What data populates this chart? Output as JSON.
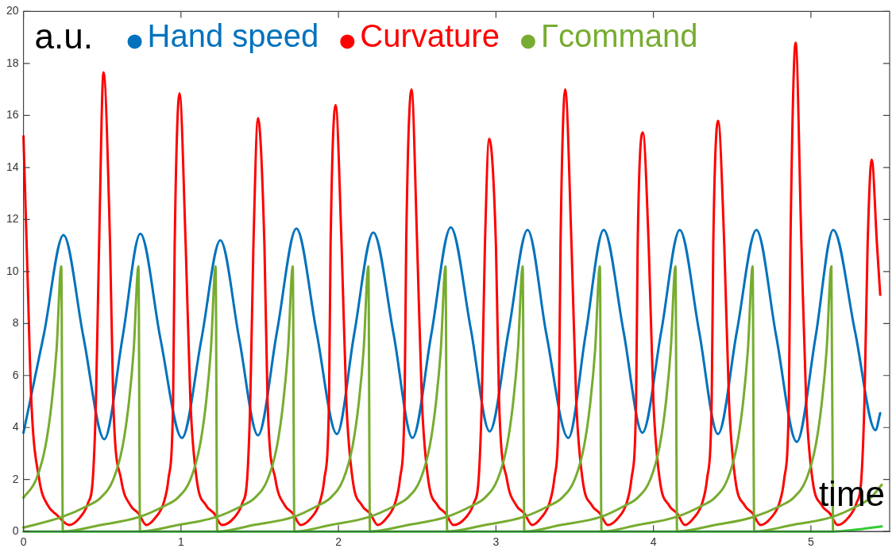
{
  "chart_data": {
    "type": "line",
    "xlabel": "time",
    "ylabel": "a.u.",
    "xlim": [
      0,
      5.5
    ],
    "xticks": [
      0,
      1,
      2,
      3,
      4,
      5
    ],
    "ylim": [
      0,
      20
    ],
    "yticks": [
      0,
      2,
      4,
      6,
      8,
      10,
      12,
      14,
      16,
      18,
      20
    ],
    "grid": false,
    "legend": "top",
    "marker": "none",
    "line_style": "solid",
    "series": [
      {
        "name": "Hand speed",
        "color": "#0072bd",
        "x": [
          0,
          0.13,
          0.254,
          0.38,
          0.513,
          0.63,
          0.742,
          0.87,
          1.006,
          1.13,
          1.25,
          1.37,
          1.489,
          1.61,
          1.733,
          1.86,
          1.99,
          2.1,
          2.221,
          2.35,
          2.47,
          2.59,
          2.713,
          2.84,
          2.96,
          3.08,
          3.201,
          3.32,
          3.46,
          3.57,
          3.684,
          3.81,
          3.93,
          4.05,
          4.167,
          4.29,
          4.41,
          4.53,
          4.654,
          4.78,
          4.91,
          5.03,
          5.142,
          5.28,
          5.41,
          5.44
        ],
        "values": [
          3.8,
          7.6,
          11.4,
          7.5,
          3.55,
          7.5,
          11.45,
          7.4,
          3.6,
          7.4,
          11.2,
          7.4,
          3.7,
          7.7,
          11.65,
          7.7,
          3.75,
          7.6,
          11.5,
          7.6,
          3.6,
          7.6,
          11.7,
          7.8,
          3.85,
          7.7,
          11.6,
          7.6,
          3.6,
          7.6,
          11.6,
          7.7,
          3.8,
          7.7,
          11.6,
          7.7,
          3.75,
          7.7,
          11.6,
          7.5,
          3.45,
          7.5,
          11.6,
          7.7,
          3.9,
          4.55
        ]
      },
      {
        "name": "Curvature",
        "color": "#ff0000",
        "x": [
          0,
          0.025,
          0.05,
          0.1,
          0.155,
          0.21,
          0.29,
          0.36,
          0.41,
          0.44,
          0.46,
          0.48,
          0.508,
          0.55,
          0.57,
          0.62,
          0.68,
          0.73,
          0.78,
          0.84,
          0.89,
          0.92,
          0.95,
          0.96,
          0.991,
          1.03,
          1.06,
          1.1,
          1.16,
          1.21,
          1.26,
          1.34,
          1.39,
          1.42,
          1.44,
          1.46,
          1.489,
          1.53,
          1.55,
          1.6,
          1.66,
          1.71,
          1.76,
          1.83,
          1.88,
          1.91,
          1.94,
          1.95,
          1.982,
          2.02,
          2.05,
          2.09,
          2.15,
          2.2,
          2.25,
          2.31,
          2.36,
          2.39,
          2.42,
          2.43,
          2.464,
          2.5,
          2.53,
          2.57,
          2.63,
          2.68,
          2.73,
          2.81,
          2.86,
          2.89,
          2.91,
          2.93,
          2.957,
          3,
          3.02,
          3.07,
          3.13,
          3.18,
          3.23,
          3.29,
          3.34,
          3.37,
          3.4,
          3.41,
          3.44,
          3.48,
          3.51,
          3.55,
          3.61,
          3.66,
          3.71,
          3.78,
          3.83,
          3.86,
          3.89,
          3.9,
          3.933,
          3.97,
          4,
          4.04,
          4.1,
          4.15,
          4.2,
          4.26,
          4.31,
          4.34,
          4.37,
          4.38,
          4.411,
          4.45,
          4.48,
          4.52,
          4.58,
          4.63,
          4.68,
          4.75,
          4.8,
          4.83,
          4.86,
          4.87,
          4.903,
          4.94,
          4.97,
          5.01,
          5.07,
          5.12,
          5.17,
          5.24,
          5.29,
          5.32,
          5.34,
          5.36,
          5.386,
          5.42,
          5.44
        ],
        "values": [
          15.2,
          10,
          5,
          2,
          1,
          0.65,
          0.25,
          0.55,
          1.1,
          2,
          5,
          11,
          17.65,
          11,
          5,
          2,
          1,
          0.7,
          0.25,
          0.55,
          1.1,
          2,
          5,
          11,
          16.85,
          11,
          5,
          2,
          1,
          0.7,
          0.25,
          0.55,
          1.1,
          2,
          5,
          11,
          15.9,
          11,
          5,
          2,
          1,
          0.7,
          0.25,
          0.55,
          1.1,
          2,
          5,
          11,
          16.4,
          11,
          5,
          2,
          1,
          0.7,
          0.25,
          0.55,
          1.1,
          2,
          5,
          11,
          17,
          11,
          5,
          2,
          1,
          0.7,
          0.25,
          0.55,
          1.1,
          2,
          5,
          11,
          15.1,
          11,
          5,
          2,
          1,
          0.7,
          0.25,
          0.55,
          1.1,
          2,
          5,
          11,
          17,
          11,
          5,
          2,
          1,
          0.7,
          0.25,
          0.55,
          1.1,
          2,
          5,
          11,
          15.35,
          11,
          5,
          2,
          1,
          0.7,
          0.25,
          0.55,
          1.1,
          2,
          5,
          11,
          15.8,
          11,
          5,
          2,
          1,
          0.7,
          0.25,
          0.55,
          1.1,
          2,
          5,
          11,
          18.8,
          11,
          5,
          2,
          1,
          0.7,
          0.25,
          0.55,
          1.1,
          2,
          5,
          11,
          14.3,
          11,
          9.1
        ]
      },
      {
        "name": "Γcommand",
        "color": "#77ac30",
        "x": [
          0,
          0.08,
          0.14,
          0.18,
          0.21,
          0.24,
          0.25,
          0.49,
          0.73,
          0.9,
          0.98,
          1.06,
          1.12,
          1.16,
          1.19,
          1.22,
          1.23,
          1.46,
          1.71,
          1.87,
          1.95,
          2.03,
          2.09,
          2.13,
          2.16,
          2.19,
          2.2,
          2.44,
          2.68,
          2.85,
          2.93,
          3.01,
          3.07,
          3.11,
          3.14,
          3.17,
          3.18,
          3.41,
          3.66,
          3.82,
          3.9,
          3.98,
          4.04,
          4.08,
          4.11,
          4.14,
          4.15,
          4.39,
          4.63,
          4.81,
          4.89,
          4.97,
          5.03,
          5.07,
          5.1,
          5.13,
          5.14
        ],
        "values": [
          1.3,
          2,
          3.3,
          5,
          7,
          10.2,
          0,
          0.25,
          0.55,
          1,
          1.3,
          2,
          3.3,
          5,
          7,
          10.2,
          0,
          0.25,
          0.55,
          1,
          1.3,
          2,
          3.3,
          5,
          7,
          10.2,
          0,
          0.25,
          0.55,
          1,
          1.3,
          2,
          3.3,
          5,
          7,
          10.2,
          0,
          0.25,
          0.55,
          1,
          1.3,
          2,
          3.3,
          5,
          7,
          10.2,
          0,
          0.25,
          0.55,
          1,
          1.3,
          2,
          3.3,
          5,
          7,
          10.2,
          0
        ]
      },
      {
        "color": "#77ac30",
        "x": [
          0,
          0.24,
          0.41,
          0.49,
          0.57,
          0.63,
          0.67,
          0.7,
          0.73,
          0.74,
          0.98,
          1.22,
          1.39,
          1.47,
          1.55,
          1.61,
          1.65,
          1.68,
          1.71,
          1.72,
          1.95,
          2.19,
          2.36,
          2.44,
          2.52,
          2.58,
          2.62,
          2.65,
          2.68,
          2.69,
          2.93,
          3.17,
          3.34,
          3.42,
          3.5,
          3.56,
          3.6,
          3.63,
          3.66,
          3.67,
          3.9,
          4.14,
          4.31,
          4.39,
          4.47,
          4.53,
          4.57,
          4.6,
          4.63,
          4.64,
          4.88,
          5.13,
          5.3,
          5.38,
          5.45
        ],
        "values": [
          0.15,
          0.55,
          1,
          1.3,
          2,
          3.3,
          5,
          7,
          10.2,
          0,
          0.25,
          0.55,
          1,
          1.3,
          2,
          3.3,
          5,
          7,
          10.2,
          0,
          0.25,
          0.55,
          1,
          1.3,
          2,
          3.3,
          5,
          7,
          10.2,
          0,
          0.25,
          0.55,
          1,
          1.3,
          2,
          3.3,
          5,
          7,
          10.2,
          0,
          0.25,
          0.55,
          1,
          1.3,
          2,
          3.3,
          5,
          7,
          10.2,
          0,
          0.25,
          0.55,
          1,
          1.3,
          1.8
        ]
      },
      {
        "color": "#33cc33",
        "x": [
          0,
          5.14,
          5.3,
          5.45
        ],
        "values": [
          0,
          0,
          0.08,
          0.2
        ]
      }
    ]
  }
}
